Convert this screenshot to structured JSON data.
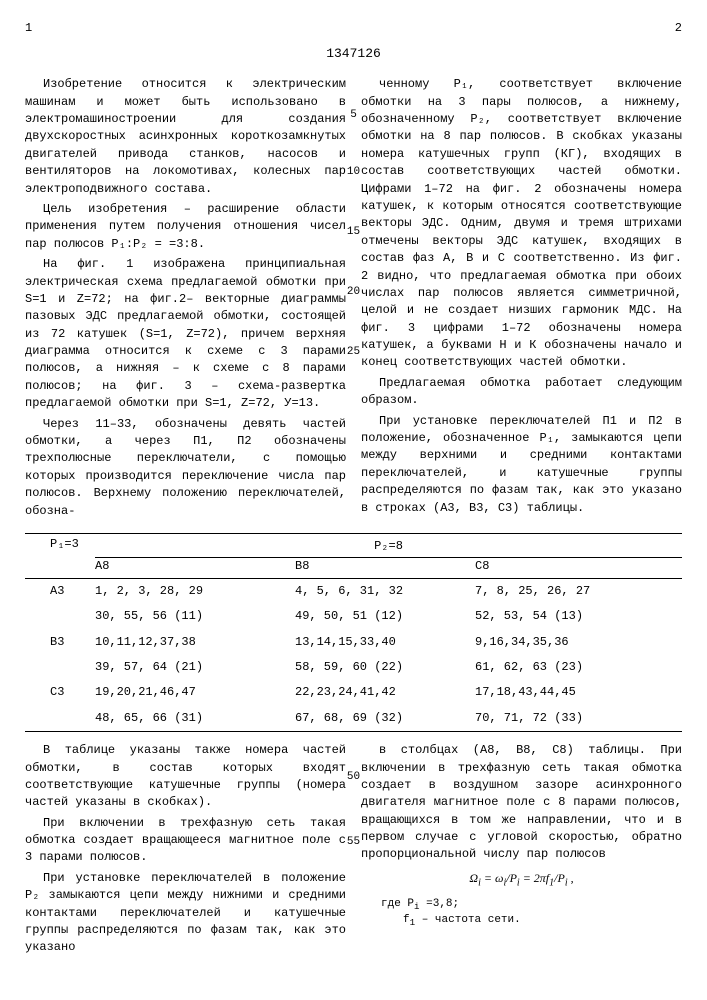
{
  "page_left": "1",
  "page_right": "2",
  "patent_number": "1347126",
  "col1": {
    "p1": "Изобретение относится к электрическим машинам и может быть использовано в электромашиностроении для создания двухскоростных асинхронных короткозамкнутых двигателей привода станков, насосов и вентиляторов на локомотивах, колесных пар электроподвижного состава.",
    "p2": "Цель изобретения – расширение области применения путем получения отношения чисел пар полюсов P₁:P₂ = =3:8.",
    "p3": "На фиг. 1 изображена принципиальная электрическая схема предлагаемой обмотки при S=1 и Z=72; на фиг.2– векторные диаграммы пазовых ЭДС предлагаемой обмотки, состоящей из 72 катушек (S=1, Z=72), причем верхняя диаграмма относится к схеме с 3 парами полюсов, а нижняя – к схеме с 8 парами полюсов; на фиг. 3 – схема-развертка предлагаемой обмотки при S=1, Z=72, У=13.",
    "p4": "Через 11–33, обозначены девять частей обмотки, а через П1, П2 обозначены трехполюсные переключатели, с помощью которых производится переключение числа пар полюсов. Верхнему положению переключателей, обозна-"
  },
  "col2": {
    "p1": "ченному P₁, соответствует включение обмотки на 3 пары полюсов, а нижнему, обозначенному P₂, соответствует включение обмотки на 8 пар полюсов. В скобках указаны номера катушечных групп (КГ), входящих в состав соответствующих частей обмотки. Цифрами 1–72 на фиг. 2 обозначены номера катушек, к которым относятся соответствующие векторы ЭДС. Одним, двумя и тремя штрихами отмечены векторы ЭДС катушек, входящих в состав фаз A, B и C соответственно. Из фиг. 2 видно, что предлагаемая обмотка при обоих числах пар полюсов является симметричной, целой и не создает низших гармоник МДС. На фиг. 3 цифрами 1–72 обозначены номера катушек, а буквами Н и К обозначены начало и конец соответствующих частей обмотки.",
    "p2": "Предлагаемая обмотка работает следующим образом.",
    "p3": "При установке переключателей П1 и П2 в положение, обозначенное P₁, замыкаются цепи между верхними и средними контактами переключателей, и катушечные группы распределяются по фазам так, как это указано в строках (A3, B3, C3) таблицы."
  },
  "markers": {
    "m5": "5",
    "m10": "10",
    "m15": "15",
    "m20": "20",
    "m25": "25"
  },
  "table": {
    "header_left": "P₁=3",
    "header_right": "P₂=8",
    "cols": {
      "a": "A8",
      "b": "B8",
      "c": "C8"
    },
    "rows": [
      {
        "label": "A3",
        "a": "1, 2, 3, 28, 29",
        "b": "4, 5, 6, 31, 32",
        "c": "7, 8, 25, 26, 27"
      },
      {
        "label": "",
        "a": "30, 55, 56 (11)",
        "b": "49, 50, 51 (12)",
        "c": "52, 53, 54 (13)"
      },
      {
        "label": "B3",
        "a": "10,11,12,37,38",
        "b": "13,14,15,33,40",
        "c": "9,16,34,35,36"
      },
      {
        "label": "",
        "a": "39, 57, 64 (21)",
        "b": "58, 59, 60 (22)",
        "c": "61, 62, 63 (23)"
      },
      {
        "label": "C3",
        "a": "19,20,21,46,47",
        "b": "22,23,24,41,42",
        "c": "17,18,43,44,45"
      },
      {
        "label": "",
        "a": "48, 65, 66 (31)",
        "b": "67, 68, 69 (32)",
        "c": "70, 71, 72 (33)"
      }
    ]
  },
  "col1b": {
    "p1": "В таблице указаны также номера частей обмотки, в состав которых входят соответствующие катушечные группы (номера частей указаны в скобках).",
    "p2": "При включении в трехфазную сеть такая обмотка создает вращающееся магнитное поле с 3 парами полюсов.",
    "p3": "При установке переключателей в положение P₂ замыкаются цепи между нижними и средними контактами переключателей и катушечные группы распределяются по фазам так, как это указано"
  },
  "col2b": {
    "p1": "в столбцах (A8, B8, C8) таблицы. При включении в трехфазную сеть такая обмотка создает в воздушном зазоре асинхронного двигателя магнитное поле с 8 парами полюсов, вращающихся в том же направлении, что и в первом случае с угловой скоростью, обратно пропорциональной числу пар полюсов",
    "formula": "Ω<sub>i</sub> = ω<sub>i</sub>/P<sub>i</sub> = 2πf<sub>1</sub>/P<sub>i</sub> ,",
    "where1": "где P<sub>i</sub> =3,8;",
    "where2": "f<sub>1</sub> – частота сети."
  },
  "markers2": {
    "m50": "50",
    "m55": "55"
  }
}
